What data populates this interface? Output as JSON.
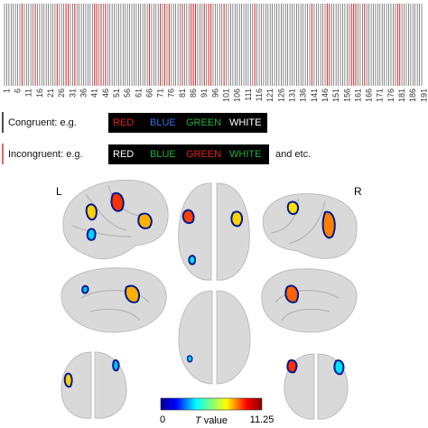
{
  "trial_axis": {
    "ticks": [
      1,
      6,
      11,
      16,
      21,
      26,
      31,
      36,
      41,
      46,
      51,
      56,
      61,
      66,
      71,
      76,
      81,
      86,
      91,
      96,
      101,
      106,
      111,
      116,
      121,
      126,
      131,
      136,
      141,
      146,
      151,
      156,
      161,
      166,
      171,
      176,
      181,
      186,
      191
    ]
  },
  "legend": {
    "congruent": {
      "label": "Congruent: e.g.",
      "color": "#111111",
      "words": [
        {
          "text": "RED",
          "color": "#e02020"
        },
        {
          "text": "BLUE",
          "color": "#3a6de0"
        },
        {
          "text": "GREEN",
          "color": "#20b040"
        },
        {
          "text": "WHITE",
          "color": "#ffffff"
        }
      ]
    },
    "incongruent": {
      "label": "Incongruent: e.g.",
      "color": "#e03030",
      "words": [
        {
          "text": "RED",
          "color": "#ffffff"
        },
        {
          "text": "BLUE",
          "color": "#20b040"
        },
        {
          "text": "GREEN",
          "color": "#e02020"
        },
        {
          "text": "WHITE",
          "color": "#20b040"
        }
      ],
      "suffix": "and etc."
    }
  },
  "hemisphere_labels": {
    "left": "L",
    "right": "R"
  },
  "colorbar": {
    "min": 0,
    "max": 11.25,
    "title_italic": "T",
    "title": "value"
  }
}
